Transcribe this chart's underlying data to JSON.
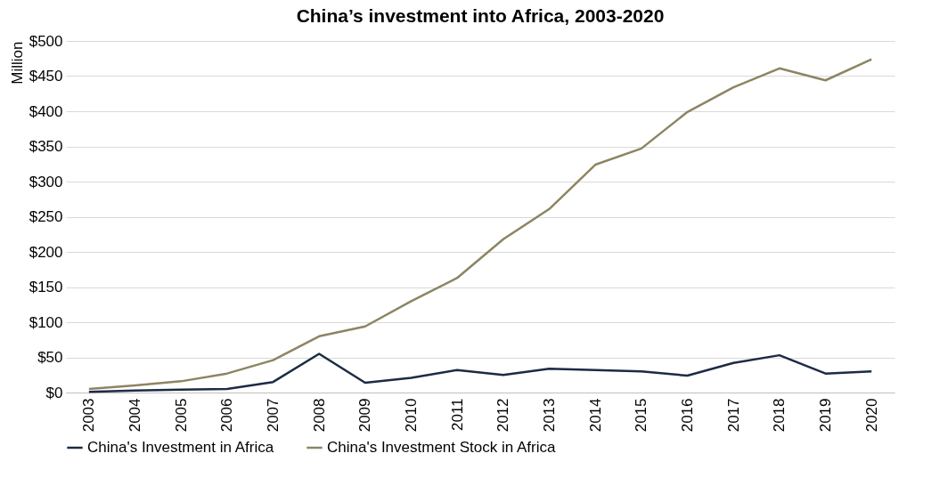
{
  "chart_data": {
    "type": "line",
    "title": "China’s investment into Africa, 2003-2020",
    "ylabel": "Million",
    "categories": [
      "2003",
      "2004",
      "2005",
      "2006",
      "2007",
      "2008",
      "2009",
      "2010",
      "2011",
      "2012",
      "2013",
      "2014",
      "2015",
      "2016",
      "2017",
      "2018",
      "2019",
      "2020"
    ],
    "series": [
      {
        "name": "China's Investment in Africa",
        "color": "#1c2b45",
        "values": [
          1,
          3,
          4,
          5,
          15,
          55,
          14,
          21,
          32,
          25,
          34,
          32,
          30,
          24,
          42,
          53,
          27,
          30
        ]
      },
      {
        "name": "China's Investment Stock in Africa",
        "color": "#8c8563",
        "values": [
          5,
          10,
          16,
          27,
          46,
          80,
          94,
          130,
          163,
          218,
          261,
          324,
          347,
          399,
          434,
          461,
          444,
          474
        ]
      }
    ],
    "ylim": [
      0,
      500
    ],
    "yticks": [
      {
        "value": 0,
        "label": "$0"
      },
      {
        "value": 50,
        "label": "$50"
      },
      {
        "value": 100,
        "label": "$100"
      },
      {
        "value": 150,
        "label": "$150"
      },
      {
        "value": 200,
        "label": "$200"
      },
      {
        "value": 250,
        "label": "$250"
      },
      {
        "value": 300,
        "label": "$300"
      },
      {
        "value": 350,
        "label": "$350"
      },
      {
        "value": 400,
        "label": "$400"
      },
      {
        "value": 450,
        "label": "$450"
      },
      {
        "value": 500,
        "label": "$500"
      }
    ],
    "grid": "y",
    "legend": "bottom",
    "marker": "none",
    "line_style": "solid"
  }
}
